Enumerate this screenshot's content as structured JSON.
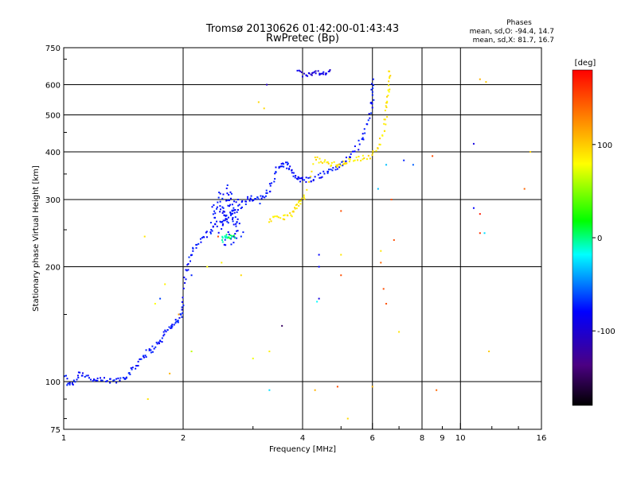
{
  "chart_data": {
    "type": "scatter",
    "title": "Tromsø 20130626 01:42:00-01:43:43",
    "subtitle": "RwPretec (Bp)",
    "xlabel": "Frequency [MHz]",
    "ylabel": "Stationary phase Virtual Height [km]",
    "xscale": "log",
    "yscale": "log",
    "xlim": [
      1,
      16
    ],
    "ylim": [
      75,
      750
    ],
    "xticks": [
      1,
      2,
      4,
      6,
      8,
      10,
      16
    ],
    "xticks_minor_labels": [
      {
        "value": 9,
        "label": "9"
      }
    ],
    "yticks": [
      75,
      100,
      200,
      300,
      400,
      500,
      600,
      750
    ],
    "x_gridlines": [
      2,
      4,
      6,
      8,
      10
    ],
    "y_gridlines": [
      100,
      200,
      300,
      400,
      500,
      600
    ],
    "stats": {
      "heading": "Phases",
      "lines": [
        "mean, sd,O: -94.4, 14.7",
        "mean, sd,X:  81.7, 16.7"
      ]
    },
    "colorbar": {
      "label": "[deg]",
      "range": [
        -180,
        180
      ],
      "ticks": [
        {
          "value": 100,
          "label": "100"
        },
        {
          "value": 0,
          "label": "0"
        },
        {
          "value": -100,
          "label": "-100"
        }
      ]
    },
    "traces": [
      {
        "name": "",
        "phase": -95,
        "spread": 0.018,
        "points": [
          [
            1.0,
            104
          ],
          [
            1.03,
            98
          ],
          [
            1.06,
            100
          ],
          [
            1.1,
            106
          ],
          [
            1.15,
            103
          ],
          [
            1.2,
            100
          ],
          [
            1.27,
            101
          ],
          [
            1.33,
            100
          ],
          [
            1.4,
            102
          ],
          [
            1.45,
            104
          ],
          [
            1.5,
            108
          ],
          [
            1.55,
            114
          ],
          [
            1.6,
            118
          ],
          [
            1.66,
            121
          ],
          [
            1.72,
            125
          ],
          [
            1.78,
            130
          ],
          [
            1.82,
            137
          ],
          [
            1.87,
            140
          ],
          [
            1.92,
            143
          ],
          [
            1.97,
            148
          ],
          [
            2.0,
            158
          ],
          [
            2.03,
            190
          ],
          [
            2.07,
            210
          ],
          [
            2.12,
            222
          ],
          [
            2.2,
            232
          ],
          [
            2.3,
            243
          ],
          [
            2.4,
            255
          ],
          [
            2.5,
            262
          ],
          [
            2.6,
            270
          ],
          [
            2.7,
            282
          ],
          [
            2.8,
            290
          ],
          [
            2.9,
            300
          ],
          [
            3.0,
            302
          ],
          [
            3.1,
            298
          ],
          [
            3.2,
            305
          ],
          [
            3.3,
            320
          ],
          [
            3.4,
            350
          ],
          [
            3.5,
            368
          ],
          [
            3.6,
            372
          ],
          [
            3.7,
            368
          ],
          [
            3.8,
            350
          ],
          [
            3.9,
            340
          ],
          [
            4.0,
            337
          ],
          [
            4.2,
            340
          ],
          [
            4.4,
            345
          ],
          [
            4.6,
            353
          ],
          [
            4.8,
            362
          ],
          [
            5.0,
            370
          ],
          [
            5.2,
            383
          ],
          [
            5.4,
            400
          ],
          [
            5.6,
            425
          ],
          [
            5.8,
            465
          ],
          [
            5.95,
            520
          ],
          [
            6.0,
            560
          ],
          [
            6.03,
            620
          ]
        ]
      },
      {
        "name": "",
        "phase": -95,
        "spread": 0.04,
        "points": [
          [
            2.35,
            255
          ],
          [
            2.4,
            275
          ],
          [
            2.45,
            290
          ],
          [
            2.5,
            280
          ],
          [
            2.55,
            265
          ],
          [
            2.6,
            300
          ],
          [
            2.65,
            285
          ],
          [
            2.7,
            270
          ],
          [
            2.75,
            260
          ],
          [
            2.5,
            245
          ],
          [
            2.6,
            235
          ],
          [
            2.7,
            240
          ],
          [
            2.8,
            250
          ],
          [
            2.45,
            300
          ],
          [
            2.55,
            320
          ],
          [
            2.75,
            300
          ]
        ]
      },
      {
        "name": "",
        "phase": -110,
        "spread": 0.01,
        "points": [
          [
            3.9,
            650
          ],
          [
            4.1,
            640
          ],
          [
            4.3,
            648
          ],
          [
            4.5,
            640
          ],
          [
            4.7,
            650
          ],
          [
            4.0,
            630
          ]
        ]
      },
      {
        "name": "",
        "phase": 90,
        "spread": 0.015,
        "points": [
          [
            3.3,
            265
          ],
          [
            3.45,
            268
          ],
          [
            3.6,
            270
          ],
          [
            3.75,
            275
          ],
          [
            3.85,
            285
          ],
          [
            3.95,
            295
          ],
          [
            4.05,
            305
          ],
          [
            4.3,
            385
          ],
          [
            4.5,
            378
          ],
          [
            4.7,
            372
          ],
          [
            4.9,
            370
          ],
          [
            5.1,
            375
          ],
          [
            5.3,
            380
          ],
          [
            5.6,
            385
          ],
          [
            5.9,
            390
          ],
          [
            6.2,
            410
          ],
          [
            6.4,
            450
          ],
          [
            6.5,
            500
          ],
          [
            6.55,
            550
          ],
          [
            6.6,
            600
          ],
          [
            6.62,
            650
          ]
        ]
      },
      {
        "name": "",
        "phase": -10,
        "spread": 0.015,
        "points": [
          [
            2.5,
            235
          ],
          [
            2.55,
            240
          ],
          [
            2.6,
            242
          ],
          [
            2.7,
            238
          ]
        ]
      }
    ],
    "scatter_points": [
      {
        "x": 1.6,
        "y": 240,
        "phase": 90
      },
      {
        "x": 1.63,
        "y": 90,
        "phase": 90
      },
      {
        "x": 1.7,
        "y": 160,
        "phase": 80
      },
      {
        "x": 1.8,
        "y": 180,
        "phase": 85
      },
      {
        "x": 2.3,
        "y": 200,
        "phase": 80
      },
      {
        "x": 2.5,
        "y": 205,
        "phase": 85
      },
      {
        "x": 2.8,
        "y": 190,
        "phase": 95
      },
      {
        "x": 2.1,
        "y": 120,
        "phase": 60
      },
      {
        "x": 3.0,
        "y": 115,
        "phase": 75
      },
      {
        "x": 3.3,
        "y": 120,
        "phase": 85
      },
      {
        "x": 3.55,
        "y": 140,
        "phase": -150
      },
      {
        "x": 3.25,
        "y": 600,
        "phase": -120
      },
      {
        "x": 3.1,
        "y": 540,
        "phase": 95
      },
      {
        "x": 3.2,
        "y": 520,
        "phase": 95
      },
      {
        "x": 3.3,
        "y": 95,
        "phase": -30
      },
      {
        "x": 4.3,
        "y": 95,
        "phase": 110
      },
      {
        "x": 4.4,
        "y": 215,
        "phase": -100
      },
      {
        "x": 4.4,
        "y": 200,
        "phase": -100
      },
      {
        "x": 4.4,
        "y": 165,
        "phase": -110
      },
      {
        "x": 4.35,
        "y": 162,
        "phase": -20
      },
      {
        "x": 5.0,
        "y": 280,
        "phase": 150
      },
      {
        "x": 5.0,
        "y": 215,
        "phase": 90
      },
      {
        "x": 5.0,
        "y": 190,
        "phase": 150
      },
      {
        "x": 5.2,
        "y": 80,
        "phase": 95
      },
      {
        "x": 4.9,
        "y": 97,
        "phase": 150
      },
      {
        "x": 6.3,
        "y": 220,
        "phase": 90
      },
      {
        "x": 6.3,
        "y": 205,
        "phase": 140
      },
      {
        "x": 6.4,
        "y": 175,
        "phase": 150
      },
      {
        "x": 6.5,
        "y": 160,
        "phase": 150
      },
      {
        "x": 6.5,
        "y": 370,
        "phase": -40
      },
      {
        "x": 6.8,
        "y": 235,
        "phase": 150
      },
      {
        "x": 6.7,
        "y": 300,
        "phase": 150
      },
      {
        "x": 7.0,
        "y": 135,
        "phase": 90
      },
      {
        "x": 7.2,
        "y": 380,
        "phase": -90
      },
      {
        "x": 6.2,
        "y": 320,
        "phase": -40
      },
      {
        "x": 6.0,
        "y": 97,
        "phase": 110
      },
      {
        "x": 7.6,
        "y": 370,
        "phase": -70
      },
      {
        "x": 8.5,
        "y": 390,
        "phase": 150
      },
      {
        "x": 8.7,
        "y": 95,
        "phase": 140
      },
      {
        "x": 10.8,
        "y": 420,
        "phase": -110
      },
      {
        "x": 10.8,
        "y": 285,
        "phase": -100
      },
      {
        "x": 11.2,
        "y": 275,
        "phase": 170
      },
      {
        "x": 11.2,
        "y": 245,
        "phase": 160
      },
      {
        "x": 11.5,
        "y": 245,
        "phase": -30
      },
      {
        "x": 11.8,
        "y": 120,
        "phase": 100
      },
      {
        "x": 11.2,
        "y": 620,
        "phase": 110
      },
      {
        "x": 11.6,
        "y": 610,
        "phase": 100
      },
      {
        "x": 14.5,
        "y": 320,
        "phase": 140
      },
      {
        "x": 15.0,
        "y": 400,
        "phase": 100
      },
      {
        "x": 2.45,
        "y": 240,
        "phase": 150
      },
      {
        "x": 1.75,
        "y": 165,
        "phase": -80
      },
      {
        "x": 2.1,
        "y": 190,
        "phase": -90
      },
      {
        "x": 1.95,
        "y": 150,
        "phase": 120
      },
      {
        "x": 1.85,
        "y": 105,
        "phase": 110
      }
    ]
  }
}
